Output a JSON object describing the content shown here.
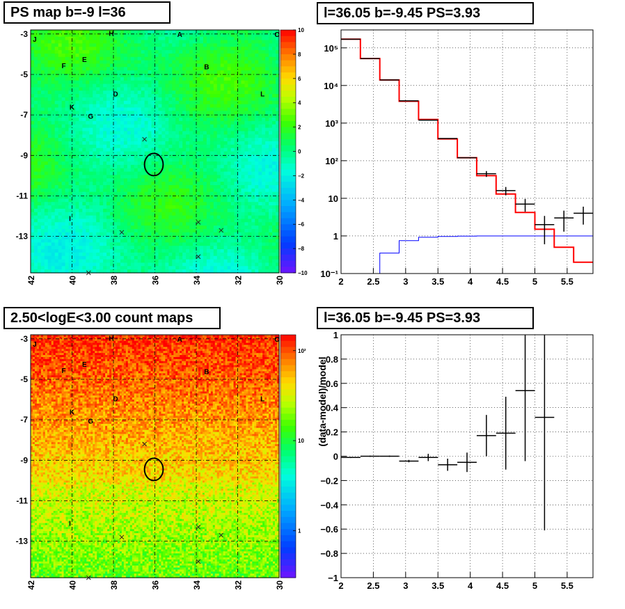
{
  "panels": {
    "tl_title": "PS map b=-9 l=36",
    "tr_title": "l=36.05 b=-9.45 PS=3.93",
    "bl_title": "2.50<logE<3.00 count maps",
    "br_title": "l=36.05 b=-9.45 PS=3.93"
  },
  "maps": {
    "x_ticks": [
      "42",
      "40",
      "38",
      "36",
      "34",
      "32",
      "30"
    ],
    "y_ticks": [
      "-3",
      "-5",
      "-7",
      "-9",
      "-11",
      "-13"
    ],
    "source_labels": [
      "J",
      "H",
      "A",
      "C",
      "F",
      "E",
      "B",
      "D",
      "L",
      "K",
      "G",
      "I"
    ],
    "ps_colorbar_ticks": [
      "10",
      "8",
      "6",
      "4",
      "2",
      "0",
      "−2",
      "−4",
      "−6",
      "−8",
      "−10"
    ],
    "count_colorbar_ticks": [
      "10²",
      "10",
      "1"
    ]
  },
  "chart_data": [
    {
      "type": "heatmap",
      "title": "PS map b=-9 l=36",
      "xlim": [
        42,
        30
      ],
      "ylim": [
        -14.8,
        -2.8
      ],
      "zlim": [
        -10,
        10
      ],
      "colorbar": "rainbow",
      "sources": [
        {
          "label": "J",
          "l": 41.8,
          "b": -3.25
        },
        {
          "label": "H",
          "l": 38.1,
          "b": -2.95
        },
        {
          "label": "A",
          "l": 34.8,
          "b": -3.0
        },
        {
          "label": "C",
          "l": 30.1,
          "b": -3.0
        },
        {
          "label": "F",
          "l": 40.4,
          "b": -4.55
        },
        {
          "label": "E",
          "l": 39.4,
          "b": -4.25
        },
        {
          "label": "B",
          "l": 33.5,
          "b": -4.6
        },
        {
          "label": "D",
          "l": 37.9,
          "b": -5.95
        },
        {
          "label": "L",
          "l": 30.8,
          "b": -5.95
        },
        {
          "label": "K",
          "l": 40.0,
          "b": -6.6
        },
        {
          "label": "G",
          "l": 39.1,
          "b": -7.05
        },
        {
          "label": "I",
          "l": 40.1,
          "b": -12.1
        }
      ],
      "crosses": [
        {
          "l": 36.5,
          "b": -8.2
        },
        {
          "l": 37.6,
          "b": -12.8
        },
        {
          "l": 33.9,
          "b": -12.3
        },
        {
          "l": 32.8,
          "b": -12.7
        },
        {
          "l": 33.9,
          "b": -14.0
        },
        {
          "l": 39.2,
          "b": -14.8
        }
      ],
      "circle": {
        "l": 36.05,
        "b": -9.45,
        "r": 0.5
      }
    },
    {
      "type": "line",
      "title": "l=36.05 b=-9.45 PS=3.93",
      "xlim": [
        2,
        5.9
      ],
      "ylim": [
        0.1,
        300000
      ],
      "yscale": "log",
      "grid": true,
      "x_ticks": [
        "2",
        "2.5",
        "3",
        "3.5",
        "4",
        "4.5",
        "5",
        "5.5"
      ],
      "y_ticks": [
        {
          "text": "10⁻¹",
          "value": 0.1
        },
        {
          "text": "1",
          "value": 1
        },
        {
          "text": "10",
          "value": 10
        },
        {
          "text": "10²",
          "value": 100
        },
        {
          "text": "10³",
          "value": 1000
        },
        {
          "text": "10⁴",
          "value": 10000
        },
        {
          "text": "10⁵",
          "value": 100000
        }
      ],
      "data_points": [
        {
          "x": 2.15,
          "y": 170000,
          "xerr": 0.15,
          "yerr": 0
        },
        {
          "x": 2.45,
          "y": 52000,
          "xerr": 0.15,
          "yerr": 0
        },
        {
          "x": 2.75,
          "y": 14000,
          "xerr": 0.15,
          "yerr": 0
        },
        {
          "x": 3.05,
          "y": 3900,
          "xerr": 0.15,
          "yerr": 0
        },
        {
          "x": 3.35,
          "y": 1200,
          "xerr": 0.15,
          "yerr": 0
        },
        {
          "x": 3.65,
          "y": 390,
          "xerr": 0.15,
          "yerr": 0
        },
        {
          "x": 3.95,
          "y": 120,
          "xerr": 0.15,
          "yerr": 0
        },
        {
          "x": 4.25,
          "y": 45,
          "xerr": 0.15,
          "yerr": 8
        },
        {
          "x": 4.55,
          "y": 16,
          "xerr": 0.15,
          "yerr": 4
        },
        {
          "x": 4.85,
          "y": 7,
          "xerr": 0.15,
          "yerr": 2.6
        },
        {
          "x": 5.15,
          "y": 2,
          "xerr": 0.15,
          "yerr": 1.4
        },
        {
          "x": 5.45,
          "y": 3,
          "xerr": 0.15,
          "yerr": 1.7
        },
        {
          "x": 5.75,
          "y": 4,
          "xerr": 0.15,
          "yerr": 2
        }
      ],
      "model_total": {
        "color": "#ff0000",
        "edges": [
          2,
          2.3,
          2.6,
          2.9,
          3.2,
          3.5,
          3.8,
          4.1,
          4.4,
          4.7,
          5.0,
          5.3,
          5.6,
          5.9
        ],
        "values": [
          170000,
          52000,
          14000,
          3800,
          1250,
          380,
          120,
          40,
          13,
          4.2,
          1.5,
          0.5,
          0.2
        ]
      },
      "model_source": {
        "color": "#0000ff",
        "edges": [
          2,
          2.3,
          2.6,
          2.9,
          3.2,
          3.5,
          3.8,
          4.1,
          4.4,
          4.7,
          5.0,
          5.3,
          5.6,
          5.9
        ],
        "values": [
          0.05,
          0.05,
          0.35,
          0.75,
          0.92,
          0.97,
          0.99,
          1.0,
          1.0,
          1.0,
          1.0,
          1.0,
          1.0
        ]
      }
    },
    {
      "type": "heatmap",
      "title": "2.50<logE<3.00 count maps",
      "xlim": [
        42,
        30
      ],
      "ylim": [
        -14.8,
        -2.8
      ],
      "zscale": "log",
      "zlim": [
        0.3,
        150
      ],
      "colorbar": "rainbow"
    },
    {
      "type": "scatter",
      "title": "l=36.05 b=-9.45 PS=3.93",
      "ylabel": "(data-model)/model",
      "xlim": [
        2,
        5.9
      ],
      "ylim": [
        -1,
        1
      ],
      "grid": true,
      "x_ticks": [
        "2",
        "2.5",
        "3",
        "3.5",
        "4",
        "4.5",
        "5",
        "5.5"
      ],
      "y_ticks": [
        "1",
        "0.8",
        "0.6",
        "0.4",
        "0.2",
        "0",
        "−0.2",
        "−0.4",
        "−0.6",
        "−0.8",
        "−1"
      ],
      "y_tick_values": [
        1,
        0.8,
        0.6,
        0.4,
        0.2,
        0,
        -0.2,
        -0.4,
        -0.6,
        -0.8,
        -1
      ],
      "points": [
        {
          "x": 2.15,
          "y": -0.01,
          "xerr": 0.15,
          "yerr": 0.005
        },
        {
          "x": 2.45,
          "y": 0.0,
          "xerr": 0.15,
          "yerr": 0.005
        },
        {
          "x": 2.75,
          "y": 0.0,
          "xerr": 0.15,
          "yerr": 0.005
        },
        {
          "x": 3.05,
          "y": -0.04,
          "xerr": 0.15,
          "yerr": 0.01
        },
        {
          "x": 3.35,
          "y": -0.01,
          "xerr": 0.15,
          "yerr": 0.03
        },
        {
          "x": 3.65,
          "y": -0.07,
          "xerr": 0.15,
          "yerr": 0.05
        },
        {
          "x": 3.95,
          "y": -0.05,
          "xerr": 0.15,
          "yerr": 0.08
        },
        {
          "x": 4.25,
          "y": 0.17,
          "xerr": 0.15,
          "yerr": 0.17
        },
        {
          "x": 4.55,
          "y": 0.19,
          "xerr": 0.15,
          "yerr": 0.3
        },
        {
          "x": 4.85,
          "y": 0.54,
          "xerr": 0.15,
          "yerr": 0.58
        },
        {
          "x": 5.15,
          "y": 0.32,
          "xerr": 0.15,
          "yerr": 0.93
        }
      ]
    }
  ]
}
